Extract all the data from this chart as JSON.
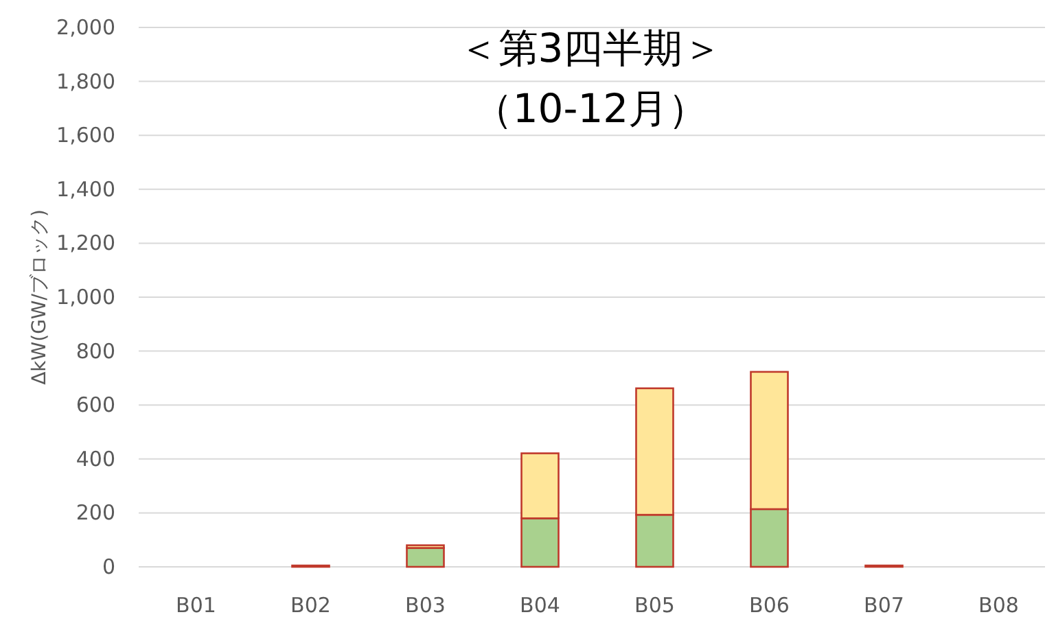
{
  "chart_data": {
    "type": "bar",
    "title": "＜第3四半期＞",
    "subtitle": "（10-12月）",
    "ylabel": "ΔkW(GW/ブロック)",
    "categories": [
      "B01",
      "B02",
      "B03",
      "B04",
      "B05",
      "B06",
      "B07",
      "B08"
    ],
    "stacked": true,
    "series": [
      {
        "color": "#a9d18e",
        "values": [
          null,
          null,
          70,
          180,
          193,
          214,
          null,
          null
        ]
      },
      {
        "color": "#ffe699",
        "values": [
          null,
          5,
          10,
          241,
          469,
          509,
          5,
          null
        ]
      }
    ],
    "ylim": [
      0,
      2000
    ],
    "yticks": [
      {
        "value": 0,
        "label": "0"
      },
      {
        "value": 200,
        "label": "200"
      },
      {
        "value": 400,
        "label": "400"
      },
      {
        "value": 600,
        "label": "600"
      },
      {
        "value": 800,
        "label": "800"
      },
      {
        "value": 1000,
        "label": "1,000"
      },
      {
        "value": 1200,
        "label": "1,200"
      },
      {
        "value": 1400,
        "label": "1,400"
      },
      {
        "value": 1600,
        "label": "1,600"
      },
      {
        "value": 1800,
        "label": "1,800"
      },
      {
        "value": 2000,
        "label": "2,000"
      }
    ],
    "grid": "y"
  }
}
